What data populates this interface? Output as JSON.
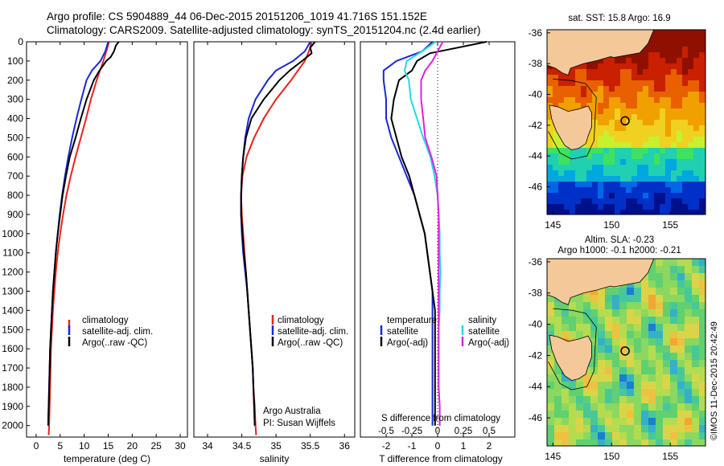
{
  "header": {
    "line1": "Argo profile: CS 5904889_44 06-Dec-2015 20151206_1019 41.716S 151.152E",
    "line2": "Climatology: CARS2009. Satellite-adjusted climatology: synTS_20151204.nc (2.4d earlier)"
  },
  "depth_axis": {
    "ticks": [
      0,
      100,
      200,
      300,
      400,
      500,
      600,
      700,
      800,
      900,
      1000,
      1100,
      1200,
      1300,
      1400,
      1500,
      1600,
      1700,
      1800,
      1900,
      2000
    ],
    "ylim": [
      2060,
      0
    ]
  },
  "colors": {
    "climatology": "#e8221c",
    "satellite": "#1828d6",
    "argo": "#000000",
    "satellite_salinity": "#22d8e8",
    "argo_adj_salinity": "#e020e0",
    "land": "#f5c89a"
  },
  "chart_data": [
    {
      "type": "line",
      "xlabel": "temperature (deg C)",
      "xlim": [
        -2,
        31.5
      ],
      "xticks": [
        0,
        5,
        10,
        15,
        20,
        25,
        30
      ],
      "legend": [
        "climatology",
        "satellite-adj. clim.",
        "Argo(..raw -QC)"
      ],
      "legend_position": "lower-middle",
      "series": [
        {
          "name": "climatology",
          "color": "red",
          "depth": [
            0,
            50,
            100,
            150,
            200,
            300,
            400,
            500,
            600,
            700,
            800,
            900,
            1000,
            1100,
            1200,
            1300,
            1400,
            1500,
            1600,
            1700,
            1800,
            1900,
            2000,
            2050
          ],
          "values": [
            15.2,
            14.6,
            14.0,
            13.3,
            12.6,
            11.4,
            10.4,
            9.3,
            8.2,
            7.2,
            6.3,
            5.6,
            5.0,
            4.5,
            4.1,
            3.8,
            3.5,
            3.3,
            3.1,
            3.0,
            2.9,
            2.8,
            2.7,
            2.6
          ]
        },
        {
          "name": "satellite-adj. clim.",
          "color": "blue",
          "depth": [
            0,
            50,
            100,
            150,
            200,
            300,
            400,
            500,
            600,
            700,
            800,
            900,
            1000,
            1100,
            1200,
            1300,
            1400,
            1500,
            1600,
            1700,
            1800,
            1900,
            2000
          ],
          "values": [
            15.0,
            14.4,
            13.4,
            11.6,
            10.5,
            9.4,
            8.4,
            7.5,
            6.7,
            6.0,
            5.4,
            4.9,
            4.5,
            4.1,
            3.8,
            3.5,
            3.3,
            3.1,
            2.9,
            2.8,
            2.7,
            2.6,
            2.5
          ]
        },
        {
          "name": "Argo(..raw -QC)",
          "color": "black",
          "depth": [
            0,
            20,
            50,
            80,
            100,
            150,
            200,
            300,
            400,
            500,
            600,
            700,
            800,
            900,
            1000,
            1100,
            1200,
            1300,
            1400,
            1500,
            1600,
            1700,
            1800,
            1900,
            2000
          ],
          "values": [
            17.2,
            16.6,
            16.2,
            15.5,
            14.6,
            13.2,
            12.0,
            10.5,
            9.3,
            8.2,
            7.0,
            6.2,
            5.5,
            5.0,
            4.5,
            4.1,
            3.8,
            3.5,
            3.3,
            3.1,
            2.9,
            2.8,
            2.7,
            2.6,
            2.5
          ]
        }
      ]
    },
    {
      "type": "line",
      "xlabel": "salinity",
      "xlim": [
        33.8,
        36.15
      ],
      "xticks": [
        34,
        34.5,
        35,
        35.5,
        36
      ],
      "legend": [
        "climatology",
        "satellite-adj. clim.",
        "Argo(..raw -QC)"
      ],
      "legend_position": "lower-middle",
      "annotation": [
        "Argo Australia",
        "PI: Susan Wijffels"
      ],
      "series": [
        {
          "name": "climatology",
          "color": "red",
          "depth": [
            0,
            50,
            100,
            150,
            200,
            300,
            400,
            500,
            600,
            700,
            800,
            900,
            1000,
            1100,
            1200,
            1300,
            1400,
            1500,
            1600,
            1700,
            1800,
            1900,
            2000,
            2050
          ],
          "values": [
            35.52,
            35.48,
            35.42,
            35.32,
            35.22,
            35.0,
            34.82,
            34.68,
            34.57,
            34.51,
            34.49,
            34.5,
            34.52,
            34.54,
            34.56,
            34.58,
            34.6,
            34.62,
            34.64,
            34.66,
            34.67,
            34.69,
            34.7,
            34.71
          ]
        },
        {
          "name": "satellite-adj. clim.",
          "color": "blue",
          "depth": [
            0,
            50,
            100,
            150,
            200,
            300,
            400,
            500,
            600,
            700,
            800,
            900,
            1000,
            1100,
            1200,
            1300,
            1400,
            1500,
            1600,
            1700,
            1800,
            1900,
            2000
          ],
          "values": [
            35.5,
            35.42,
            35.25,
            35.0,
            34.88,
            34.7,
            34.6,
            34.55,
            34.52,
            34.5,
            34.49,
            34.49,
            34.5,
            34.52,
            34.55,
            34.58,
            34.6,
            34.62,
            34.64,
            34.66,
            34.67,
            34.68,
            34.69
          ]
        },
        {
          "name": "Argo(..raw -QC)",
          "color": "black",
          "depth": [
            0,
            30,
            60,
            100,
            150,
            200,
            300,
            400,
            500,
            600,
            700,
            800,
            900,
            1000,
            1100,
            1200,
            1300,
            1400,
            1500,
            1600,
            1700,
            1800,
            1900,
            2000
          ],
          "values": [
            35.57,
            35.5,
            35.52,
            35.38,
            35.2,
            35.05,
            34.82,
            34.64,
            34.56,
            34.52,
            34.5,
            34.49,
            34.49,
            34.51,
            34.53,
            34.56,
            34.58,
            34.6,
            34.62,
            34.64,
            34.66,
            34.67,
            34.68,
            34.69
          ]
        }
      ]
    },
    {
      "type": "line",
      "xlabel": "T difference from climatology",
      "top_axis_label": "S difference from climatology",
      "xlim": [
        -3.0,
        3.0
      ],
      "xticks": [
        -2,
        -1,
        0,
        1,
        2
      ],
      "top_ticks_values": [
        -0.5,
        -0.25,
        0,
        0.25,
        0.5
      ],
      "top_ticks": [
        "-0.5",
        "-0.25",
        "0",
        "0.25",
        "0.5"
      ],
      "legend_groups": {
        "temperature": [
          "satellite",
          "Argo(-adj)"
        ],
        "salinity": [
          "satellite",
          "Argo(-adj)"
        ]
      },
      "legend_position": "lower",
      "series": [
        {
          "name": "temperature satellite",
          "color": "blue",
          "scale": "T",
          "depth": [
            0,
            50,
            100,
            150,
            200,
            300,
            400,
            500,
            600,
            700,
            800,
            900,
            1000,
            1100,
            1200,
            1300,
            1400,
            1500,
            1600,
            1700,
            1800,
            1900,
            2000
          ],
          "values": [
            -0.2,
            -0.6,
            -1.6,
            -2.1,
            -2.1,
            -2.0,
            -2.0,
            -1.8,
            -1.5,
            -1.2,
            -0.9,
            -0.7,
            -0.5,
            -0.4,
            -0.3,
            -0.2,
            -0.2,
            -0.2,
            -0.2,
            -0.2,
            -0.2,
            -0.2,
            -0.2
          ]
        },
        {
          "name": "temperature Argo(-adj)",
          "color": "black",
          "scale": "T",
          "depth": [
            0,
            30,
            60,
            100,
            150,
            200,
            250,
            300,
            400,
            500,
            600,
            700,
            800,
            900,
            1000,
            1100,
            1200,
            1300,
            1400,
            1500,
            1600,
            1700,
            1800,
            1900,
            2000
          ],
          "values": [
            1.9,
            0.8,
            -0.3,
            -0.8,
            -1.0,
            -1.5,
            -1.6,
            -1.7,
            -1.8,
            -1.6,
            -1.4,
            -1.1,
            -0.9,
            -0.7,
            -0.5,
            -0.4,
            -0.3,
            -0.2,
            -0.1,
            -0.1,
            -0.1,
            -0.1,
            -0.1,
            -0.1,
            -0.1
          ]
        },
        {
          "name": "salinity satellite",
          "color": "cyan",
          "scale": "S",
          "depth": [
            0,
            50,
            100,
            150,
            200,
            300,
            400,
            500,
            600,
            700,
            800,
            900,
            1000,
            1100,
            1200,
            1300,
            1400,
            1500,
            1600,
            1700,
            1800,
            1900,
            2000
          ],
          "values": [
            -0.02,
            -0.15,
            -0.3,
            -0.32,
            -0.28,
            -0.26,
            -0.2,
            -0.14,
            -0.07,
            -0.03,
            0,
            0.01,
            0.02,
            0.02,
            0.03,
            0.02,
            0.02,
            0.01,
            0.01,
            0.01,
            0.01,
            0.02,
            0.02
          ]
        },
        {
          "name": "salinity Argo(-adj)",
          "color": "magenta",
          "scale": "S",
          "depth": [
            0,
            50,
            100,
            150,
            200,
            300,
            400,
            500,
            600,
            700,
            800,
            900,
            1000,
            1100,
            1200,
            1300,
            1400,
            1500,
            1600,
            1700,
            1800,
            1900,
            2000
          ],
          "values": [
            0.05,
            0.0,
            -0.05,
            -0.12,
            -0.16,
            -0.16,
            -0.14,
            -0.12,
            -0.06,
            -0.01,
            0,
            0.01,
            0.01,
            0.01,
            0.01,
            0.01,
            0.01,
            0.01,
            0.01,
            0.01,
            0.01,
            0.02,
            0.02
          ]
        }
      ]
    },
    {
      "type": "heatmap",
      "title": "sat. SST: 15.8 Argo: 16.9",
      "xlim": [
        144.5,
        158
      ],
      "ylim": [
        -47.8,
        -35.8
      ],
      "xticks": [
        145,
        150,
        155
      ],
      "yticks": [
        -36,
        -38,
        -40,
        -42,
        -44,
        -46
      ],
      "profile_location": [
        151.152,
        -41.716
      ]
    },
    {
      "type": "heatmap",
      "title": "Altim. SLA: -0.23",
      "subtitle": "Argo h1000: -0.1 h2000: -0.21",
      "xlim": [
        144.5,
        158
      ],
      "ylim": [
        -47.8,
        -35.8
      ],
      "xticks": [
        145,
        150,
        155
      ],
      "yticks": [
        -36,
        -38,
        -40,
        -42,
        -44,
        -46
      ],
      "profile_location": [
        151.152,
        -41.716
      ]
    }
  ],
  "watermark": "©IMOS 11-Dec-2015 20:42:49"
}
